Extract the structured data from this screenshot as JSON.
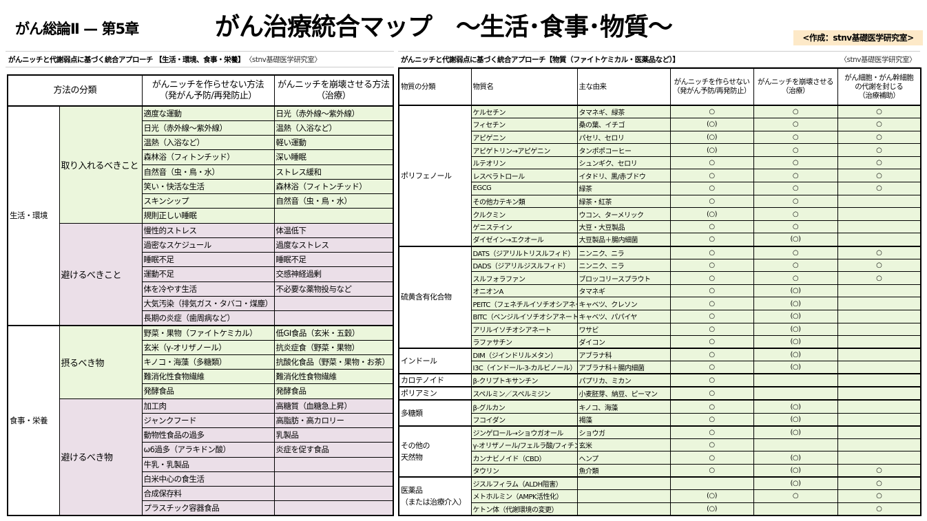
{
  "header": {
    "chapter": "がん総論Ⅱ — 第5章",
    "title": "がん治療統合マップ　～生活･食事･物質～",
    "credit": "<作成：stnv基礎医学研究室>"
  },
  "colors": {
    "green": "#ebf6dc",
    "pink": "#ebdfe8",
    "badge": "#fde9c8"
  },
  "left": {
    "subtitle": "がんニッチと代謝弱点に基づく統合アプローチ 【生活・環境、食事・栄養】",
    "source": "〈stnv基礎医学研究室〉",
    "headers": [
      "方法の分類",
      "がんニッチを作らせない方法\n（発がん予防/再発防止）",
      "がんニッチを崩壊させる方法\n（治療）"
    ],
    "groups": [
      {
        "category": "生活・環境",
        "subs": [
          {
            "name": "取り入れるべきこと",
            "tone": "green",
            "rows": [
              [
                "適度な運動",
                "日光（赤外線～紫外線）"
              ],
              [
                "日光（赤外線～紫外線）",
                "温熱（入浴など）"
              ],
              [
                "温熱（入浴など）",
                "軽い運動"
              ],
              [
                "森林浴（フィトンチッド）",
                "深い睡眠"
              ],
              [
                "自然音（虫・鳥・水）",
                "ストレス緩和"
              ],
              [
                "笑い・快活な生活",
                "森林浴（フィトンチッド）"
              ],
              [
                "スキンシップ",
                "自然音（虫・鳥・水）"
              ],
              [
                "規則正しい睡眠",
                ""
              ]
            ]
          },
          {
            "name": "避けるべきこと",
            "tone": "pink",
            "rows": [
              [
                "慢性的ストレス",
                "体温低下"
              ],
              [
                "過密なスケジュール",
                "過度なストレス"
              ],
              [
                "睡眠不足",
                "睡眠不足"
              ],
              [
                "運動不足",
                "交感神経過剰"
              ],
              [
                "体を冷やす生活",
                "不必要な薬物投与など"
              ],
              [
                "大気汚染（排気ガス・タバコ・煤塵）",
                ""
              ],
              [
                "長期の炎症（歯周病など）",
                ""
              ]
            ]
          }
        ]
      },
      {
        "category": "食事・栄養",
        "subs": [
          {
            "name": "摂るべき物",
            "tone": "green",
            "rows": [
              [
                "野菜・果物（ファイトケミカル）",
                "低GI食品（玄米・五穀）"
              ],
              [
                "玄米（γ-オリザノール）",
                "抗炎症食（野菜・果物）"
              ],
              [
                "キノコ・海藻（多糖類）",
                "抗酸化食品（野菜・果物・お茶）"
              ],
              [
                "難消化性食物繊維",
                "難消化性食物繊維"
              ],
              [
                "発酵食品",
                "発酵食品"
              ]
            ]
          },
          {
            "name": "避けるべき物",
            "tone": "pink",
            "rows": [
              [
                "加工肉",
                "高糖質（血糖急上昇）"
              ],
              [
                "ジャンクフード",
                "高脂肪・高カロリー"
              ],
              [
                "動物性食品の過多",
                "乳製品"
              ],
              [
                "ω6過多（アラキドン酸）",
                "炎症を促す食品"
              ],
              [
                "牛乳・乳製品",
                ""
              ],
              [
                "白米中心の食生活",
                ""
              ],
              [
                "合成保存料",
                ""
              ],
              [
                "プラスチック容器食品",
                ""
              ]
            ]
          }
        ]
      }
    ]
  },
  "right": {
    "subtitle": "がんニッチと代謝弱点に基づく統合アプローチ【物質（ファイトケミカル・医薬品など）】",
    "source": "〈stnv基礎医学研究室〉",
    "headers": [
      "物質の分類",
      "物質名",
      "主な由来",
      "がんニッチを作らせない\n（発がん予防/再発防止）",
      "がんニッチを崩壊させる\n（治療）",
      "がん細胞・がん幹細胞\nの代謝を封じる\n（治療補助）"
    ],
    "groups": [
      {
        "category": "ポリフェノール",
        "rows": [
          [
            "ケルセチン",
            "タマネギ、緑茶",
            "○",
            "○",
            "○"
          ],
          [
            "フィセチン",
            "桑の葉、イチゴ",
            "(○)",
            "○",
            "○"
          ],
          [
            "アピゲニン",
            "パセリ、セロリ",
            "(○)",
            "○",
            "○"
          ],
          [
            "アピゲトリン→アピゲニン",
            "タンポポコーヒー",
            "(○)",
            "○",
            "○"
          ],
          [
            "ルテオリン",
            "シュンギク、セロリ",
            "○",
            "○",
            "○"
          ],
          [
            "レスベラトロール",
            "イタドリ、黒/赤ブドウ",
            "○",
            "○",
            "○"
          ],
          [
            "EGCG",
            "緑茶",
            "○",
            "○",
            "○"
          ],
          [
            "その他カテキン類",
            "緑茶・紅茶",
            "○",
            "○",
            ""
          ],
          [
            "クルクミン",
            "ウコン、ターメリック",
            "(○)",
            "○",
            ""
          ],
          [
            "ゲニステイン",
            "大豆・大豆製品",
            "○",
            "○",
            ""
          ],
          [
            "ダイゼイン→エクオール",
            "大豆製品＋腸内細菌",
            "○",
            "(○)",
            ""
          ]
        ]
      },
      {
        "category": "硫黄含有化合物",
        "rows": [
          [
            "DATS（ジアリルトリスルフィド）",
            "ニンニク、ニラ",
            "○",
            "○",
            "○"
          ],
          [
            "DADS（ジアリルジスルフィド）",
            "ニンニク、ニラ",
            "○",
            "○",
            "○"
          ],
          [
            "スルフォラファン",
            "ブロッコリースプラウト",
            "○",
            "○",
            "○"
          ],
          [
            "オニオンA",
            "タマネギ",
            "○",
            "(○)",
            ""
          ],
          [
            "PEITC（フェネチルイソチオシアネート）",
            "キャベツ、クレソン",
            "○",
            "(○)",
            ""
          ],
          [
            "BITC（ベンジルイソチオシアネート）",
            "キャベツ、パパイヤ",
            "○",
            "(○)",
            ""
          ],
          [
            "アリルイソチオシアネート",
            "ワサビ",
            "○",
            "(○)",
            ""
          ],
          [
            "ラファサチン",
            "ダイコン",
            "○",
            "(○)",
            ""
          ]
        ]
      },
      {
        "category": "インドール",
        "rows": [
          [
            "DIM（ジインドリルメタン）",
            "アブラナ科",
            "○",
            "(○)",
            ""
          ],
          [
            "I3C（インドール-3-カルビノール）",
            "アブラナ科＋腸内細菌",
            "○",
            "(○)",
            ""
          ]
        ]
      },
      {
        "category": "カロテノイド",
        "rows": [
          [
            "β-クリプトキサンチン",
            "パプリカ、ミカン",
            "○",
            "",
            ""
          ]
        ]
      },
      {
        "category": "ポリアミン",
        "rows": [
          [
            "スペルミン／スペルミジン",
            "小麦胚芽、納豆、ピーマン",
            "○",
            "",
            ""
          ]
        ]
      },
      {
        "category": "多糖類",
        "rows": [
          [
            "β-グルカン",
            "キノコ、海藻",
            "○",
            "(○)",
            ""
          ],
          [
            "フコイダン",
            "褐藻",
            "○",
            "(○)",
            ""
          ]
        ]
      },
      {
        "category": "その他の\n天然物",
        "rows": [
          [
            "ジンゲロール→ショウガオール",
            "ショウガ",
            "○",
            "(○)",
            ""
          ],
          [
            "γ-オリザノール/フェルラ酸/フィチン酸",
            "玄米",
            "○",
            "",
            ""
          ],
          [
            "カンナビノイド（CBD）",
            "ヘンプ",
            "○",
            "(○)",
            ""
          ],
          [
            "タウリン",
            "魚介類",
            "○",
            "(○)",
            "○"
          ]
        ]
      },
      {
        "category": "医薬品\n（または治療介入）",
        "rows": [
          [
            "ジスルフィラム（ALDH阻害）",
            "",
            "",
            "(○)",
            "○"
          ],
          [
            "メトホルミン（AMPK活性化）",
            "",
            "(○)",
            "○",
            "○"
          ],
          [
            "ケトン体（代謝環境の変更）",
            "",
            "(○)",
            "",
            "○"
          ]
        ]
      }
    ]
  }
}
